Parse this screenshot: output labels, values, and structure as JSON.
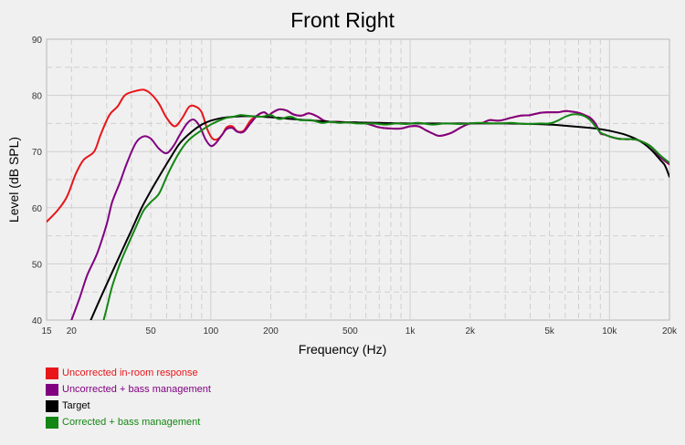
{
  "chart_data": {
    "type": "line",
    "title": "Front Right",
    "xlabel": "Frequency (Hz)",
    "ylabel": "Level (dB SPL)",
    "x_scale": "log",
    "xlim": [
      15,
      20000
    ],
    "ylim": [
      40,
      90
    ],
    "grid": true,
    "legend_position": "bottom-left",
    "x_ticks": [
      {
        "value": 15,
        "label": "15"
      },
      {
        "value": 20,
        "label": "20"
      },
      {
        "value": 50,
        "label": "50"
      },
      {
        "value": 100,
        "label": "100"
      },
      {
        "value": 200,
        "label": "200"
      },
      {
        "value": 500,
        "label": "500"
      },
      {
        "value": 1000,
        "label": "1k"
      },
      {
        "value": 2000,
        "label": "2k"
      },
      {
        "value": 5000,
        "label": "5k"
      },
      {
        "value": 10000,
        "label": "10k"
      },
      {
        "value": 20000,
        "label": "20k"
      }
    ],
    "y_ticks": [
      40,
      50,
      60,
      70,
      80,
      90
    ],
    "series": [
      {
        "name": "Uncorrected in-room response",
        "color": "#e8151a",
        "points": [
          [
            15,
            57.5
          ],
          [
            17,
            59.5
          ],
          [
            19,
            62
          ],
          [
            21,
            66
          ],
          [
            23,
            68.5
          ],
          [
            26,
            70
          ],
          [
            28,
            73
          ],
          [
            31,
            76.5
          ],
          [
            34,
            78
          ],
          [
            37,
            80
          ],
          [
            41,
            80.7
          ],
          [
            46,
            81
          ],
          [
            50,
            80.3
          ],
          [
            55,
            78.5
          ],
          [
            60,
            76
          ],
          [
            66,
            74.5
          ],
          [
            72,
            76
          ],
          [
            78,
            78
          ],
          [
            84,
            78
          ],
          [
            90,
            77
          ],
          [
            96,
            74
          ],
          [
            102,
            72.3
          ],
          [
            108,
            72.2
          ],
          [
            114,
            73
          ],
          [
            120,
            74.3
          ],
          [
            128,
            74.5
          ],
          [
            136,
            73.6
          ],
          [
            146,
            73.7
          ],
          [
            158,
            75.5
          ],
          [
            172,
            76.5
          ],
          [
            185,
            77
          ],
          [
            195,
            76.5
          ],
          [
            205,
            77
          ],
          [
            220,
            77.5
          ],
          [
            240,
            77.3
          ],
          [
            260,
            76.6
          ],
          [
            285,
            76.4
          ],
          [
            310,
            76.8
          ],
          [
            340,
            76.3
          ],
          [
            370,
            75.5
          ],
          [
            400,
            75.3
          ],
          [
            440,
            75.3
          ],
          [
            480,
            75.2
          ],
          [
            520,
            75.2
          ],
          [
            600,
            75
          ],
          [
            700,
            74.3
          ],
          [
            800,
            74.1
          ],
          [
            900,
            74.1
          ],
          [
            1000,
            74.5
          ],
          [
            1100,
            74.5
          ],
          [
            1200,
            73.8
          ],
          [
            1300,
            73.2
          ],
          [
            1400,
            72.8
          ],
          [
            1600,
            73.3
          ],
          [
            1800,
            74.3
          ],
          [
            2000,
            75
          ],
          [
            2300,
            75.1
          ],
          [
            2500,
            75.6
          ],
          [
            2800,
            75.5
          ],
          [
            3200,
            76
          ],
          [
            3600,
            76.4
          ],
          [
            4000,
            76.5
          ],
          [
            4500,
            76.9
          ],
          [
            5000,
            77
          ],
          [
            5500,
            77
          ],
          [
            6000,
            77.2
          ],
          [
            6500,
            77.1
          ],
          [
            7000,
            76.9
          ],
          [
            7500,
            76.5
          ],
          [
            8000,
            76
          ],
          [
            8500,
            75
          ],
          [
            9000,
            73.3
          ],
          [
            9500,
            73
          ],
          [
            10000,
            72.7
          ],
          [
            11000,
            72.3
          ],
          [
            12000,
            72.2
          ],
          [
            13000,
            72.2
          ],
          [
            14000,
            72
          ],
          [
            16000,
            71
          ],
          [
            18000,
            69
          ],
          [
            20000,
            67.7
          ]
        ]
      },
      {
        "name": "Uncorrected + bass management",
        "color": "#800080",
        "points": [
          [
            20,
            40
          ],
          [
            22,
            44
          ],
          [
            24,
            48
          ],
          [
            27,
            52
          ],
          [
            30,
            57
          ],
          [
            32,
            61
          ],
          [
            35,
            64.5
          ],
          [
            38,
            68
          ],
          [
            42,
            71.5
          ],
          [
            46,
            72.7
          ],
          [
            50,
            72.3
          ],
          [
            55,
            70.5
          ],
          [
            60,
            69.7
          ],
          [
            65,
            71
          ],
          [
            70,
            73
          ],
          [
            76,
            75
          ],
          [
            82,
            75.7
          ],
          [
            88,
            74.5
          ],
          [
            94,
            72.2
          ],
          [
            100,
            71
          ],
          [
            106,
            71.5
          ],
          [
            114,
            73
          ],
          [
            120,
            74
          ],
          [
            128,
            74.2
          ],
          [
            136,
            73.5
          ],
          [
            146,
            73.5
          ],
          [
            158,
            75
          ],
          [
            172,
            76.5
          ],
          [
            185,
            77
          ],
          [
            195,
            76.5
          ],
          [
            205,
            77
          ],
          [
            220,
            77.5
          ],
          [
            240,
            77.3
          ],
          [
            260,
            76.6
          ],
          [
            285,
            76.4
          ],
          [
            310,
            76.8
          ],
          [
            340,
            76.3
          ],
          [
            370,
            75.5
          ],
          [
            400,
            75.3
          ],
          [
            440,
            75.3
          ],
          [
            480,
            75.2
          ],
          [
            520,
            75.2
          ],
          [
            600,
            75
          ],
          [
            700,
            74.3
          ],
          [
            800,
            74.1
          ],
          [
            900,
            74.1
          ],
          [
            1000,
            74.5
          ],
          [
            1100,
            74.5
          ],
          [
            1200,
            73.8
          ],
          [
            1300,
            73.2
          ],
          [
            1400,
            72.8
          ],
          [
            1600,
            73.3
          ],
          [
            1800,
            74.3
          ],
          [
            2000,
            75
          ],
          [
            2300,
            75.1
          ],
          [
            2500,
            75.6
          ],
          [
            2800,
            75.5
          ],
          [
            3200,
            76
          ],
          [
            3600,
            76.4
          ],
          [
            4000,
            76.5
          ],
          [
            4500,
            76.9
          ],
          [
            5000,
            77
          ],
          [
            5500,
            77
          ],
          [
            6000,
            77.2
          ],
          [
            6500,
            77.1
          ],
          [
            7000,
            76.9
          ],
          [
            7500,
            76.5
          ],
          [
            8000,
            76
          ],
          [
            8500,
            75
          ],
          [
            9000,
            73.3
          ],
          [
            9500,
            73
          ],
          [
            10000,
            72.7
          ],
          [
            11000,
            72.3
          ],
          [
            12000,
            72.2
          ],
          [
            13000,
            72.2
          ],
          [
            14000,
            72
          ],
          [
            16000,
            71
          ],
          [
            18000,
            69
          ],
          [
            20000,
            67.8
          ]
        ]
      },
      {
        "name": "Target",
        "color": "#000000",
        "points": [
          [
            25,
            40
          ],
          [
            28,
            44
          ],
          [
            32,
            48.5
          ],
          [
            36,
            52.5
          ],
          [
            40,
            56
          ],
          [
            45,
            60
          ],
          [
            50,
            63
          ],
          [
            56,
            66
          ],
          [
            63,
            69
          ],
          [
            70,
            71.5
          ],
          [
            80,
            73.5
          ],
          [
            90,
            74.8
          ],
          [
            100,
            75.5
          ],
          [
            115,
            76
          ],
          [
            130,
            76.2
          ],
          [
            150,
            76.3
          ],
          [
            180,
            76.2
          ],
          [
            220,
            76
          ],
          [
            300,
            75.6
          ],
          [
            400,
            75.3
          ],
          [
            500,
            75.2
          ],
          [
            700,
            75.1
          ],
          [
            1000,
            75
          ],
          [
            2000,
            75
          ],
          [
            3000,
            75
          ],
          [
            5000,
            74.8
          ],
          [
            6000,
            74.6
          ],
          [
            7000,
            74.4
          ],
          [
            8000,
            74.2
          ],
          [
            9000,
            74
          ],
          [
            10000,
            73.7
          ],
          [
            12000,
            73
          ],
          [
            14000,
            72
          ],
          [
            16000,
            70.5
          ],
          [
            18000,
            68.5
          ],
          [
            19000,
            67.5
          ],
          [
            20000,
            65.5
          ]
        ]
      },
      {
        "name": "Corrected + bass management",
        "color": "#138713",
        "points": [
          [
            29,
            40
          ],
          [
            30,
            42
          ],
          [
            32,
            46
          ],
          [
            35,
            50
          ],
          [
            38,
            53
          ],
          [
            42,
            56.5
          ],
          [
            46,
            59.5
          ],
          [
            50,
            61
          ],
          [
            55,
            62.5
          ],
          [
            60,
            65.5
          ],
          [
            65,
            68
          ],
          [
            70,
            70
          ],
          [
            75,
            71.5
          ],
          [
            80,
            72.5
          ],
          [
            90,
            73.8
          ],
          [
            100,
            74.8
          ],
          [
            110,
            75.5
          ],
          [
            120,
            76
          ],
          [
            130,
            76.2
          ],
          [
            140,
            76.5
          ],
          [
            150,
            76.4
          ],
          [
            160,
            76.3
          ],
          [
            180,
            76.2
          ],
          [
            200,
            76.5
          ],
          [
            220,
            75.8
          ],
          [
            250,
            76.2
          ],
          [
            280,
            75.6
          ],
          [
            320,
            75.6
          ],
          [
            360,
            75.1
          ],
          [
            400,
            75.3
          ],
          [
            440,
            75.1
          ],
          [
            480,
            75.2
          ],
          [
            550,
            75
          ],
          [
            650,
            75
          ],
          [
            750,
            74.8
          ],
          [
            850,
            75
          ],
          [
            950,
            74.9
          ],
          [
            1100,
            75.1
          ],
          [
            1300,
            74.8
          ],
          [
            1500,
            75
          ],
          [
            1800,
            74.9
          ],
          [
            2200,
            75.1
          ],
          [
            2700,
            75
          ],
          [
            3200,
            75.1
          ],
          [
            3800,
            74.9
          ],
          [
            4500,
            75
          ],
          [
            5000,
            75
          ],
          [
            5500,
            75.5
          ],
          [
            6000,
            76.2
          ],
          [
            6500,
            76.6
          ],
          [
            7000,
            76.6
          ],
          [
            7500,
            76.3
          ],
          [
            8000,
            75.6
          ],
          [
            8500,
            74.5
          ],
          [
            9000,
            73.4
          ],
          [
            9500,
            73
          ],
          [
            10000,
            72.7
          ],
          [
            11000,
            72.3
          ],
          [
            12000,
            72.2
          ],
          [
            13000,
            72.2
          ],
          [
            14000,
            72
          ],
          [
            16000,
            71
          ],
          [
            18000,
            69.3
          ],
          [
            20000,
            68
          ]
        ]
      }
    ]
  }
}
